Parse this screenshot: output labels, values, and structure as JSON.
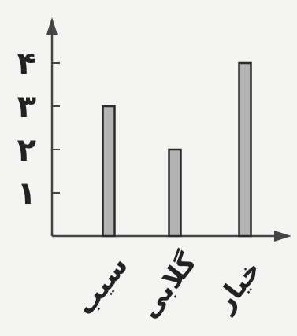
{
  "chart_data": {
    "type": "bar",
    "categories": [
      "سیب",
      "گلابی",
      "خیار"
    ],
    "values": [
      3,
      2,
      4
    ],
    "yticks": [
      1,
      2,
      3,
      4
    ],
    "ytick_labels": [
      "۱",
      "۲",
      "۳",
      "۴"
    ],
    "ylim": [
      0,
      4.3
    ],
    "grid": false,
    "bar_color": "#b3b3b3",
    "bar_stroke": "#2b2b2b",
    "axis_color": "#444444"
  }
}
